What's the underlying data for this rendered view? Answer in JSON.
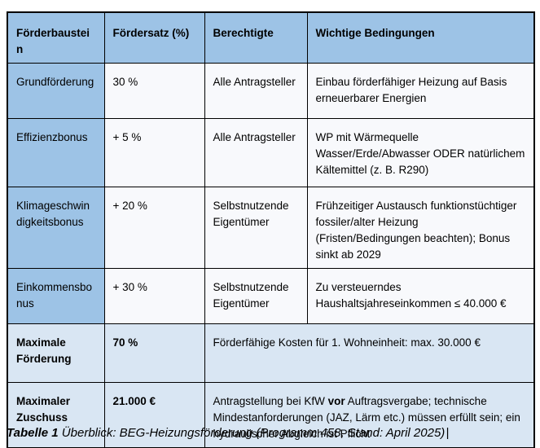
{
  "colors": {
    "header_blue": "#9DC3E6",
    "summary_blue": "#D9E6F3",
    "body_cell": "#F8F9FC",
    "border": "#000000"
  },
  "table": {
    "headers": {
      "baustein": "Förderbaustein",
      "satz": "Fördersatz (%)",
      "berechtigte": "Berechtigte",
      "bedingungen": "Wichtige Bedingungen"
    },
    "rows": [
      {
        "baustein": "Grundförderung",
        "satz": "30 %",
        "berechtigte": "Alle Antragsteller",
        "bedingungen": "Einbau förderfähiger Heizung auf Basis erneuerbarer Energien"
      },
      {
        "baustein": "Effizienzbonus",
        "satz": "+ 5 %",
        "berechtigte": "Alle Antragsteller",
        "bedingungen": "WP mit Wärmequelle Wasser/Erde/Abwasser ODER natürlichem Kältemittel (z. B. R290)"
      },
      {
        "baustein": "Klimageschwindigkeitsbonus",
        "satz": "+ 20 %",
        "berechtigte": "Selbstnutzende Eigentümer",
        "bedingungen": "Frühzeitiger Austausch funktionstüchtiger fossiler/alter Heizung (Fristen/Bedingungen beachten); Bonus sinkt ab 2029"
      },
      {
        "baustein": "Einkommensbonus",
        "satz": "+ 30 %",
        "berechtigte": "Selbstnutzende Eigentümer",
        "bedingungen": "Zu versteuerndes Haushaltsjahreseinkommen ≤ 40.000 €"
      }
    ],
    "summary_rows": [
      {
        "baustein": "Maximale Förderung",
        "satz": "70 %",
        "bedingungen": "Förderfähige Kosten für 1. Wohneinheit: max. 30.000 €"
      },
      {
        "baustein": "Maximaler Zuschuss",
        "satz": "21.000 €",
        "bedingungen_segments": [
          {
            "text": "Antragstellung bei KfW ",
            "bold": false
          },
          {
            "text": "vor",
            "bold": true
          },
          {
            "text": " Auftragsvergabe; technische Mindestanforderungen (JAZ, Lärm etc.) müssen erfüllt sein; ein hydraulischer Abgleich ist Pflicht",
            "bold": false
          }
        ]
      }
    ]
  },
  "caption": {
    "label": "Tabelle 1",
    "text": " Überblick: BEG-Heizungsförderung (Programm 458, Stand: April 2025)",
    "cursor": "|"
  }
}
